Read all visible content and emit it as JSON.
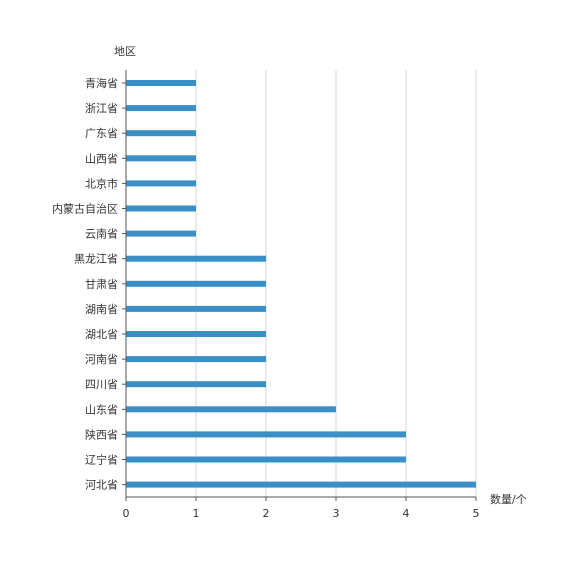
{
  "chart_data": {
    "type": "bar",
    "orientation": "horizontal",
    "categories": [
      "青海省",
      "浙江省",
      "广东省",
      "山西省",
      "北京市",
      "内蒙古自治区",
      "云南省",
      "黑龙江省",
      "甘肃省",
      "湖南省",
      "湖北省",
      "河南省",
      "四川省",
      "山东省",
      "陕西省",
      "辽宁省",
      "河北省"
    ],
    "values": [
      1,
      1,
      1,
      1,
      1,
      1,
      1,
      2,
      2,
      2,
      2,
      2,
      2,
      3,
      4,
      4,
      5
    ],
    "xlabel": "数量/个",
    "ylabel": "地区",
    "xlim": [
      0,
      5
    ],
    "xticks": [
      "0",
      "1",
      "2",
      "3",
      "4",
      "5"
    ],
    "grid": "vertical",
    "bar_color": "#3a8fc7",
    "grid_color": "#d6d6d6",
    "axis_color": "#555555"
  }
}
